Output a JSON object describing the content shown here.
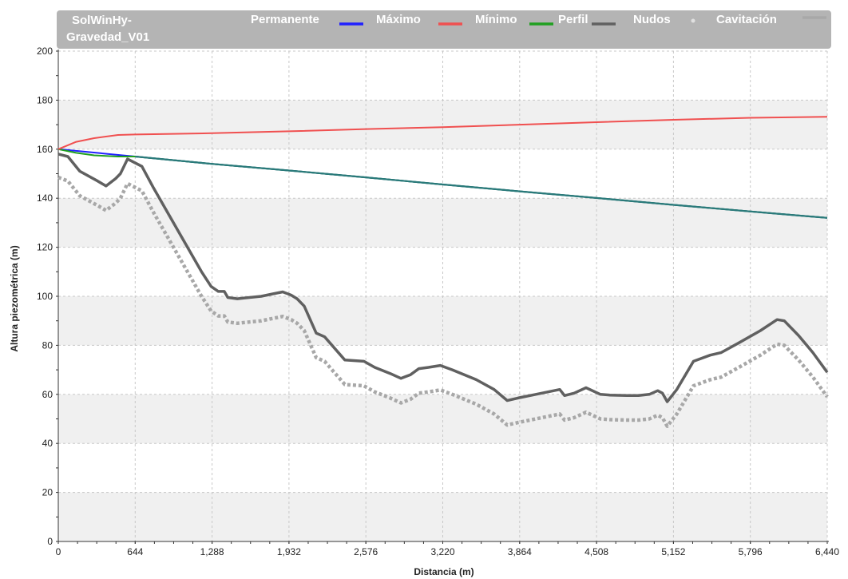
{
  "header": {
    "title_line1": "SolWinHy-",
    "title_line2": "Gravedad_V01"
  },
  "chart_data": {
    "type": "line",
    "xlabel": "Distancia (m)",
    "ylabel": "Altura piezométrica (m)",
    "xlim": [
      0,
      6440
    ],
    "ylim": [
      0,
      200
    ],
    "x_ticks": [
      0,
      644,
      1288,
      1932,
      2576,
      3220,
      3864,
      4508,
      5152,
      5796,
      6440
    ],
    "x_tick_labels": [
      "0",
      "644",
      "1,288",
      "1,932",
      "2,576",
      "3,220",
      "3,864",
      "4,508",
      "5,152",
      "5,796",
      "6,440"
    ],
    "y_ticks": [
      0,
      20,
      40,
      60,
      80,
      100,
      120,
      140,
      160,
      180,
      200
    ],
    "y_tick_labels": [
      "0",
      "20",
      "40",
      "60",
      "80",
      "100",
      "120",
      "140",
      "160",
      "180",
      "200"
    ],
    "grid": true,
    "legend_position": "top",
    "series": [
      {
        "name": "Permanente",
        "color": "#2020ff",
        "style": "solid",
        "points": [
          [
            0,
            160
          ],
          [
            644,
            157
          ],
          [
            1288,
            154
          ],
          [
            1932,
            151.3
          ],
          [
            2576,
            148.5
          ],
          [
            3220,
            145.6
          ],
          [
            3864,
            142.8
          ],
          [
            4508,
            140.1
          ],
          [
            5152,
            137.3
          ],
          [
            5796,
            134.6
          ],
          [
            6440,
            132
          ]
        ]
      },
      {
        "name": "Máximo",
        "color": "#f05050",
        "style": "solid",
        "points": [
          [
            0,
            160
          ],
          [
            150,
            163
          ],
          [
            300,
            164.5
          ],
          [
            500,
            165.8
          ],
          [
            644,
            166
          ],
          [
            1288,
            166.5
          ],
          [
            1932,
            167.3
          ],
          [
            2576,
            168.2
          ],
          [
            3220,
            169
          ],
          [
            3864,
            170
          ],
          [
            4508,
            171
          ],
          [
            5152,
            172
          ],
          [
            5796,
            172.8
          ],
          [
            6440,
            173.2
          ]
        ]
      },
      {
        "name": "Mínimo",
        "color": "#20a020",
        "style": "solid",
        "points": [
          [
            0,
            160
          ],
          [
            150,
            158.5
          ],
          [
            300,
            157.5
          ],
          [
            500,
            157
          ],
          [
            644,
            157
          ],
          [
            1288,
            154
          ],
          [
            1932,
            151.3
          ],
          [
            2576,
            148.5
          ],
          [
            3220,
            145.6
          ],
          [
            3864,
            142.8
          ],
          [
            4508,
            140.1
          ],
          [
            5152,
            137.3
          ],
          [
            5796,
            134.6
          ],
          [
            6440,
            132
          ]
        ]
      },
      {
        "name": "Perfil",
        "color": "#606060",
        "style": "solid",
        "points": [
          [
            0,
            158
          ],
          [
            80,
            157
          ],
          [
            180,
            151
          ],
          [
            330,
            147
          ],
          [
            400,
            145
          ],
          [
            480,
            148
          ],
          [
            520,
            150
          ],
          [
            580,
            156
          ],
          [
            700,
            153
          ],
          [
            800,
            144
          ],
          [
            1000,
            127
          ],
          [
            1200,
            110
          ],
          [
            1280,
            104
          ],
          [
            1340,
            102
          ],
          [
            1390,
            102
          ],
          [
            1420,
            99.5
          ],
          [
            1500,
            99
          ],
          [
            1560,
            99.3
          ],
          [
            1700,
            100
          ],
          [
            1800,
            101
          ],
          [
            1880,
            101.8
          ],
          [
            1950,
            100.5
          ],
          [
            2000,
            99
          ],
          [
            2060,
            96
          ],
          [
            2160,
            85
          ],
          [
            2230,
            83.5
          ],
          [
            2400,
            74
          ],
          [
            2560,
            73.5
          ],
          [
            2650,
            71
          ],
          [
            2780,
            68.5
          ],
          [
            2870,
            66.5
          ],
          [
            2950,
            68
          ],
          [
            3020,
            70.5
          ],
          [
            3100,
            71
          ],
          [
            3200,
            71.8
          ],
          [
            3300,
            70
          ],
          [
            3500,
            66
          ],
          [
            3650,
            62
          ],
          [
            3760,
            57.5
          ],
          [
            3850,
            58.5
          ],
          [
            4000,
            60
          ],
          [
            4200,
            62
          ],
          [
            4240,
            59.5
          ],
          [
            4320,
            60.5
          ],
          [
            4420,
            62.7
          ],
          [
            4540,
            60
          ],
          [
            4620,
            59.7
          ],
          [
            4760,
            59.5
          ],
          [
            4860,
            59.5
          ],
          [
            4950,
            60
          ],
          [
            5020,
            61.5
          ],
          [
            5060,
            60.5
          ],
          [
            5100,
            57
          ],
          [
            5180,
            62
          ],
          [
            5320,
            73.5
          ],
          [
            5460,
            76
          ],
          [
            5550,
            77
          ],
          [
            5700,
            81
          ],
          [
            5880,
            86
          ],
          [
            6020,
            90.5
          ],
          [
            6080,
            90
          ],
          [
            6200,
            84
          ],
          [
            6320,
            77
          ],
          [
            6440,
            69
          ]
        ]
      },
      {
        "name": "Cavitación",
        "color": "#a8a8a8",
        "style": "dotted",
        "points": [
          [
            0,
            148.5
          ],
          [
            80,
            147
          ],
          [
            180,
            141
          ],
          [
            330,
            137
          ],
          [
            400,
            135
          ],
          [
            480,
            138
          ],
          [
            520,
            140
          ],
          [
            580,
            146
          ],
          [
            700,
            143
          ],
          [
            800,
            134
          ],
          [
            1000,
            117
          ],
          [
            1200,
            100
          ],
          [
            1280,
            94
          ],
          [
            1340,
            92
          ],
          [
            1390,
            92
          ],
          [
            1420,
            89.5
          ],
          [
            1500,
            89
          ],
          [
            1560,
            89.3
          ],
          [
            1700,
            90
          ],
          [
            1800,
            91
          ],
          [
            1880,
            91.8
          ],
          [
            1950,
            90.5
          ],
          [
            2000,
            89
          ],
          [
            2060,
            86
          ],
          [
            2160,
            75
          ],
          [
            2230,
            73.5
          ],
          [
            2400,
            64
          ],
          [
            2560,
            63.5
          ],
          [
            2650,
            61
          ],
          [
            2780,
            58.5
          ],
          [
            2870,
            56.5
          ],
          [
            2950,
            58
          ],
          [
            3020,
            60.5
          ],
          [
            3100,
            61
          ],
          [
            3200,
            61.8
          ],
          [
            3300,
            60
          ],
          [
            3500,
            56
          ],
          [
            3650,
            52
          ],
          [
            3760,
            47.5
          ],
          [
            3850,
            48.5
          ],
          [
            4000,
            50
          ],
          [
            4200,
            52
          ],
          [
            4240,
            49.5
          ],
          [
            4320,
            50.5
          ],
          [
            4420,
            52.7
          ],
          [
            4540,
            50
          ],
          [
            4620,
            49.7
          ],
          [
            4760,
            49.5
          ],
          [
            4860,
            49.5
          ],
          [
            4950,
            50
          ],
          [
            5020,
            51.5
          ],
          [
            5060,
            50.5
          ],
          [
            5100,
            47
          ],
          [
            5180,
            52
          ],
          [
            5320,
            63.5
          ],
          [
            5460,
            66
          ],
          [
            5550,
            67
          ],
          [
            5700,
            71
          ],
          [
            5880,
            76
          ],
          [
            6020,
            80.5
          ],
          [
            6080,
            80
          ],
          [
            6200,
            74
          ],
          [
            6320,
            67
          ],
          [
            6440,
            59
          ]
        ]
      }
    ],
    "legend": [
      {
        "label": "Permanente",
        "color": "#2020ff",
        "kind": "line"
      },
      {
        "label": "Máximo",
        "color": "#f05050",
        "kind": "line"
      },
      {
        "label": "Mínimo",
        "color": "#20a020",
        "kind": "line"
      },
      {
        "label": "Perfil",
        "color": "#606060",
        "kind": "line"
      },
      {
        "label": "Nudos",
        "color": "#e0e0e0",
        "kind": "dot"
      },
      {
        "label": "Cavitación",
        "color": "#a8a8a8",
        "kind": "line"
      }
    ]
  }
}
